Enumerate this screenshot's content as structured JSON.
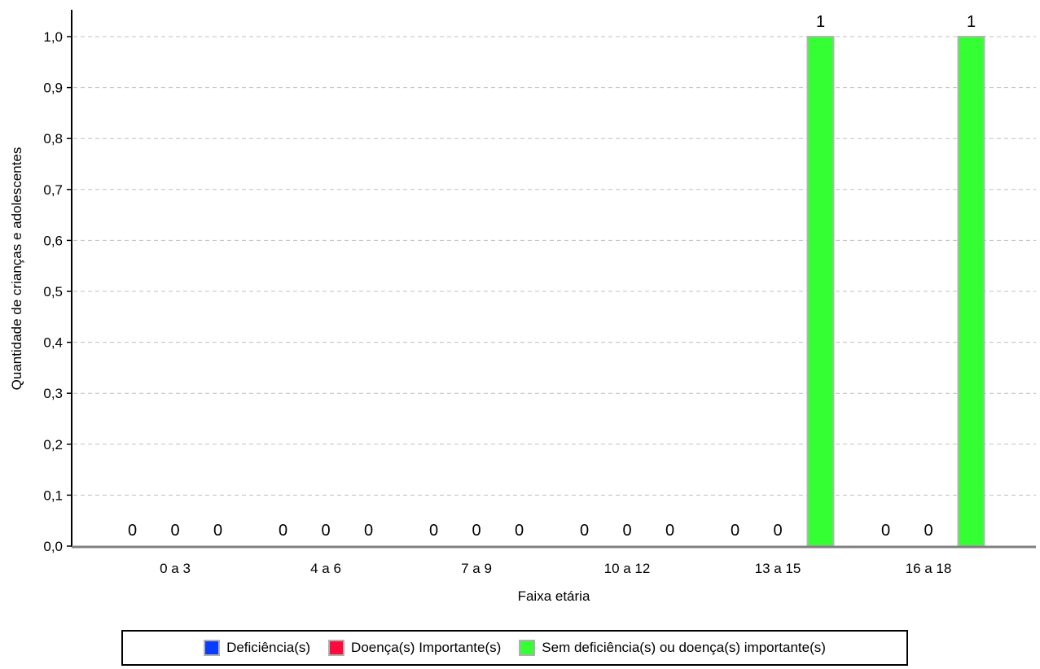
{
  "chart_data": {
    "type": "bar",
    "xlabel": "Faixa etária",
    "ylabel": "Quantidade de crianças e adolescentes",
    "ylim": [
      0,
      1.0
    ],
    "yticks": [
      0.0,
      0.1,
      0.2,
      0.3,
      0.4,
      0.5,
      0.6,
      0.7,
      0.8,
      0.9,
      1.0
    ],
    "ytick_labels": [
      "0,0",
      "0,1",
      "0,2",
      "0,3",
      "0,4",
      "0,5",
      "0,6",
      "0,7",
      "0,8",
      "0,9",
      "1,0"
    ],
    "categories": [
      "0 a 3",
      "4 a 6",
      "7 a 9",
      "10 a 12",
      "13 a 15",
      "16 a 18"
    ],
    "series": [
      {
        "name": "Deficiência(s)",
        "color": "#0a3cff",
        "values": [
          0,
          0,
          0,
          0,
          0,
          0
        ]
      },
      {
        "name": "Doença(s) Importante(s)",
        "color": "#ff0a3c",
        "values": [
          0,
          0,
          0,
          0,
          0,
          0
        ]
      },
      {
        "name": "Sem deficiência(s) ou doença(s) importante(s)",
        "color": "#33ff33",
        "values": [
          0,
          0,
          0,
          0,
          1,
          1
        ]
      }
    ],
    "data_labels": [
      [
        "0",
        "0",
        "0"
      ],
      [
        "0",
        "0",
        "0"
      ],
      [
        "0",
        "0",
        "0"
      ],
      [
        "0",
        "0",
        "0"
      ],
      [
        "0",
        "0",
        "1"
      ],
      [
        "0",
        "0",
        "1"
      ]
    ],
    "grid": true,
    "legend_position": "bottom"
  }
}
